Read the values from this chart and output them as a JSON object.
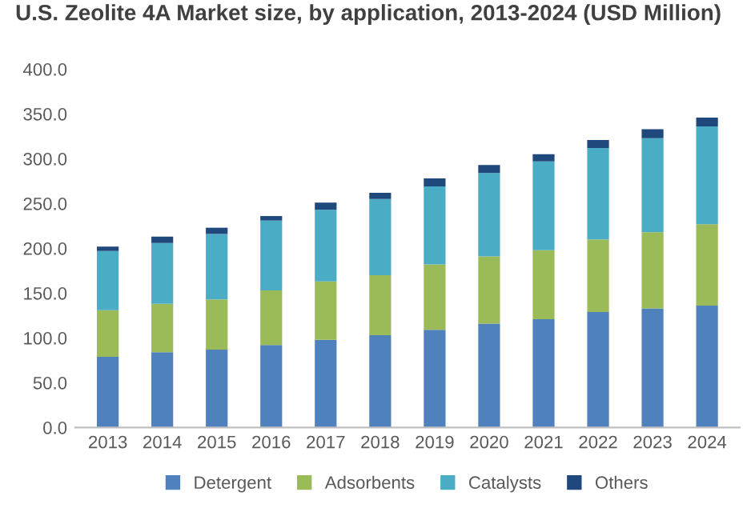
{
  "chart_data": {
    "type": "bar",
    "title": "U.S. Zeolite 4A Market size, by application, 2013-2024 (USD Million)",
    "stacked": true,
    "categories": [
      "2013",
      "2014",
      "2015",
      "2016",
      "2017",
      "2018",
      "2019",
      "2020",
      "2021",
      "2022",
      "2023",
      "2024"
    ],
    "series": [
      {
        "name": "Detergent",
        "color": "#4f81bd",
        "values": [
          79,
          84,
          87,
          92,
          98,
          103,
          109,
          116,
          121,
          129,
          133,
          136
        ]
      },
      {
        "name": "Adsorbents",
        "color": "#9bbb59",
        "values": [
          52,
          54,
          56,
          61,
          65,
          67,
          73,
          75,
          77,
          81,
          85,
          91
        ]
      },
      {
        "name": "Catalysts",
        "color": "#4bacc6",
        "values": [
          66,
          68,
          73,
          78,
          80,
          85,
          87,
          93,
          99,
          102,
          105,
          109
        ]
      },
      {
        "name": "Others",
        "color": "#1f497d",
        "values": [
          5,
          7,
          7,
          5,
          8,
          7,
          9,
          9,
          8,
          9,
          10,
          10
        ]
      }
    ],
    "ylim": [
      0,
      400
    ],
    "yticks": [
      {
        "value": 0,
        "label": "0.0"
      },
      {
        "value": 50,
        "label": "50.0"
      },
      {
        "value": 100,
        "label": "100.0"
      },
      {
        "value": 150,
        "label": "150.0"
      },
      {
        "value": 200,
        "label": "200.0"
      },
      {
        "value": 250,
        "label": "250.0"
      },
      {
        "value": 300,
        "label": "300.0"
      },
      {
        "value": 350,
        "label": "350.0"
      },
      {
        "value": 400,
        "label": "400.0"
      }
    ],
    "grid": false,
    "legend": "bottom"
  }
}
